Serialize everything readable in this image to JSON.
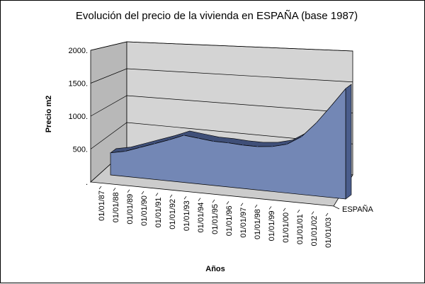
{
  "chart_data": {
    "type": "area",
    "title": "Evolución del precio de la vivienda en ESPAÑA (base 1987)",
    "xlabel": "Años",
    "ylabel": "Precio m2",
    "y_ticks": [
      "2000.",
      "1500.",
      "1000.",
      "500.",
      "."
    ],
    "ylim": [
      0,
      2000
    ],
    "categories": [
      "01/01/87",
      "01/01/88",
      "01/01/89",
      "01/01/90",
      "01/01/91",
      "01/01/92",
      "01/01/93",
      "01/01/94",
      "01/01/95",
      "01/01/96",
      "01/01/97",
      "01/01/98",
      "01/01/99",
      "01/01/00",
      "01/01/01",
      "01/01/02",
      "01/01/03"
    ],
    "series": [
      {
        "name": "ESPAÑA",
        "values": [
          290,
          330,
          400,
          470,
          540,
          620,
          600,
          580,
          580,
          570,
          570,
          590,
          640,
          760,
          960,
          1200,
          1450
        ]
      }
    ],
    "grid": true,
    "three_d": true,
    "legend": "series label on depth axis",
    "colors": {
      "area": "#7387b5",
      "area_top": "#3f4f78",
      "walls": "#c0c0c0",
      "floor": "#cfcfcf"
    }
  }
}
